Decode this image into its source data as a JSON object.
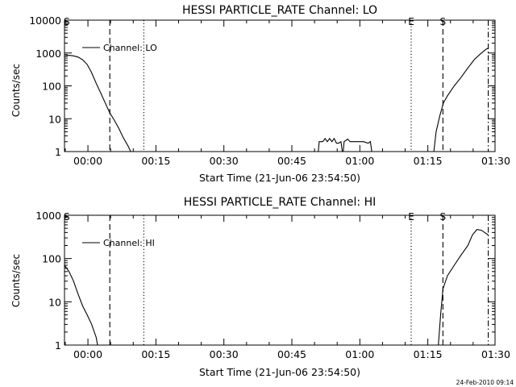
{
  "footer_timestamp": "24-Feb-2010 09:14",
  "chart_data": [
    {
      "type": "line",
      "title": "HESSI PARTICLE_RATE Channel: LO",
      "xlabel": "Start Time (21-Jun-06 23:54:50)",
      "ylabel": "Counts/sec",
      "yscale": "log",
      "ylim": [
        1,
        10000
      ],
      "xlim_minutes_since_start": [
        0,
        95
      ],
      "x_ticks": [
        {
          "t": 5.17,
          "label": "00:00"
        },
        {
          "t": 20.17,
          "label": "00:15"
        },
        {
          "t": 35.17,
          "label": "00:30"
        },
        {
          "t": 50.17,
          "label": "00:45"
        },
        {
          "t": 65.17,
          "label": "01:00"
        },
        {
          "t": 80.17,
          "label": "01:15"
        },
        {
          "t": 95.17,
          "label": "01:30"
        }
      ],
      "y_ticks": [
        {
          "v": 1,
          "label": "1"
        },
        {
          "v": 10,
          "label": "10"
        },
        {
          "v": 100,
          "label": "100"
        },
        {
          "v": 1000,
          "label": "1000"
        },
        {
          "v": 10000,
          "label": "10000"
        }
      ],
      "legend": {
        "label": "Channel: LO",
        "placement": "top-left"
      },
      "markers": [
        {
          "t": 0.5,
          "label": "S",
          "style": "none"
        },
        {
          "t": 10.0,
          "label": "",
          "style": "dashed"
        },
        {
          "t": 17.5,
          "label": "",
          "style": "dotted"
        },
        {
          "t": 76.5,
          "label": "E",
          "style": "dotted"
        },
        {
          "t": 83.5,
          "label": "S",
          "style": "dashed"
        },
        {
          "t": 93.5,
          "label": "",
          "style": "dashdot"
        }
      ],
      "series": [
        {
          "segments": [
            [
              [
                0,
                800
              ],
              [
                1,
                850
              ],
              [
                2,
                820
              ],
              [
                3,
                750
              ],
              [
                4,
                620
              ],
              [
                5,
                450
              ],
              [
                6,
                250
              ],
              [
                7,
                120
              ],
              [
                8,
                60
              ],
              [
                9,
                30
              ],
              [
                10,
                15
              ],
              [
                11,
                9
              ],
              [
                12,
                5
              ],
              [
                13,
                2.6
              ],
              [
                14,
                1.5
              ],
              [
                14.6,
                1
              ]
            ],
            [
              [
                56,
                1
              ],
              [
                56.2,
                2
              ],
              [
                57,
                2
              ],
              [
                57.5,
                2.5
              ],
              [
                58,
                2
              ],
              [
                58.5,
                2.5
              ],
              [
                59,
                2
              ],
              [
                59.5,
                2.5
              ],
              [
                60,
                1.8
              ],
              [
                60.5,
                1.8
              ],
              [
                61,
                2
              ],
              [
                61.3,
                1
              ]
            ],
            [
              [
                61.5,
                1
              ],
              [
                61.7,
                2
              ],
              [
                62.5,
                2.4
              ],
              [
                63,
                2
              ],
              [
                64,
                2
              ],
              [
                65,
                2
              ],
              [
                66,
                2
              ],
              [
                67,
                1.8
              ],
              [
                67.5,
                2
              ],
              [
                67.8,
                1
              ]
            ],
            [
              [
                81.5,
                1
              ],
              [
                82,
                4
              ],
              [
                82.8,
                12
              ],
              [
                83.6,
                30
              ],
              [
                84.5,
                50
              ],
              [
                86,
                100
              ],
              [
                87.5,
                180
              ],
              [
                89,
                350
              ],
              [
                90.5,
                650
              ],
              [
                92,
                1000
              ],
              [
                93,
                1300
              ],
              [
                93.5,
                1400
              ]
            ]
          ]
        }
      ]
    },
    {
      "type": "line",
      "title": "HESSI PARTICLE_RATE Channel: HI",
      "xlabel": "Start Time (21-Jun-06 23:54:50)",
      "ylabel": "Counts/sec",
      "yscale": "log",
      "ylim": [
        1,
        1000
      ],
      "xlim_minutes_since_start": [
        0,
        95
      ],
      "x_ticks": [
        {
          "t": 5.17,
          "label": "00:00"
        },
        {
          "t": 20.17,
          "label": "00:15"
        },
        {
          "t": 35.17,
          "label": "00:30"
        },
        {
          "t": 50.17,
          "label": "00:45"
        },
        {
          "t": 65.17,
          "label": "01:00"
        },
        {
          "t": 80.17,
          "label": "01:15"
        },
        {
          "t": 95.17,
          "label": "01:30"
        }
      ],
      "y_ticks": [
        {
          "v": 1,
          "label": "1"
        },
        {
          "v": 10,
          "label": "10"
        },
        {
          "v": 100,
          "label": "100"
        },
        {
          "v": 1000,
          "label": "1000"
        }
      ],
      "legend": {
        "label": "Channel: HI",
        "placement": "top-left"
      },
      "markers": [
        {
          "t": 0.5,
          "label": "S",
          "style": "none"
        },
        {
          "t": 10.0,
          "label": "",
          "style": "dashed"
        },
        {
          "t": 17.5,
          "label": "",
          "style": "dotted"
        },
        {
          "t": 76.5,
          "label": "E",
          "style": "dotted"
        },
        {
          "t": 83.5,
          "label": "S",
          "style": "dashed"
        },
        {
          "t": 93.5,
          "label": "",
          "style": "dashdot"
        }
      ],
      "series": [
        {
          "segments": [
            [
              [
                0,
                70
              ],
              [
                1,
                50
              ],
              [
                2,
                30
              ],
              [
                3,
                15
              ],
              [
                4,
                8
              ],
              [
                5,
                5
              ],
              [
                6,
                3
              ],
              [
                7,
                1.5
              ],
              [
                7.3,
                1
              ]
            ],
            [
              [
                82.5,
                1
              ],
              [
                83,
                5
              ],
              [
                83.5,
                20
              ],
              [
                84.5,
                40
              ],
              [
                86,
                70
              ],
              [
                87.5,
                120
              ],
              [
                89,
                200
              ],
              [
                90,
                350
              ],
              [
                91,
                470
              ],
              [
                92,
                450
              ],
              [
                93,
                380
              ],
              [
                93.5,
                350
              ]
            ]
          ]
        }
      ]
    }
  ]
}
